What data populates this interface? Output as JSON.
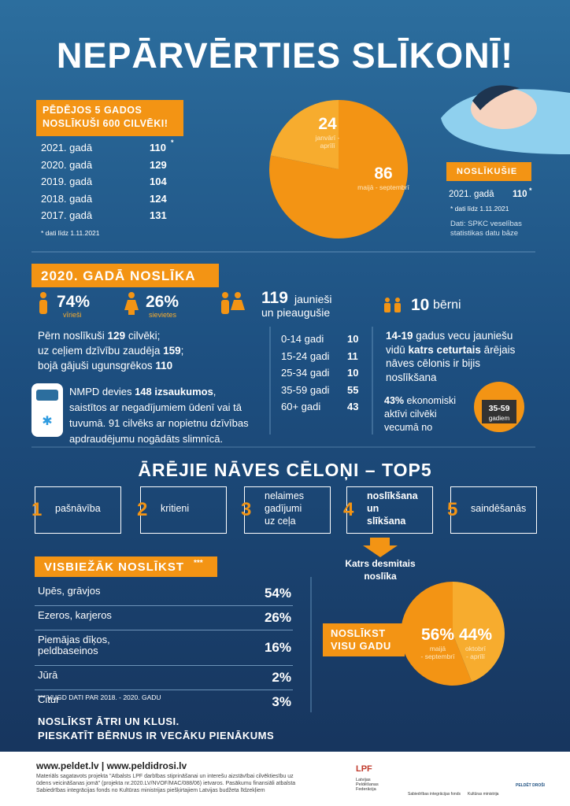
{
  "header": {
    "title": "NEPĀRVĒRTIES SLĪKONĪ!"
  },
  "five_years": {
    "heading": [
      "PĒDĒJOS 5 GADOS",
      "NOSLĪKUŠI 600 CILVĒKI!"
    ],
    "rows": [
      {
        "year": "2021. gadā",
        "count": 110,
        "mark": "*"
      },
      {
        "year": "2020. gadā",
        "count": 129
      },
      {
        "year": "2019. gadā",
        "count": 104
      },
      {
        "year": "2018. gadā",
        "count": 124
      },
      {
        "year": "2017. gadā",
        "count": 131
      }
    ],
    "note": "* dati līdz 1.11.2021"
  },
  "season_pie": {
    "type": "pie",
    "slices": [
      {
        "value": 24,
        "label": [
          "janvārī -",
          "aprīlī"
        ],
        "color": "#f7ac2e"
      },
      {
        "value": 86,
        "label": [
          "maijā - septembrī"
        ],
        "color": "#f39414"
      }
    ]
  },
  "drowned": {
    "heading": "NOSLĪKUŠIE",
    "year": "2021. gadā",
    "count": 110,
    "mark": "*",
    "note": "* dati līdz 1.11.2021",
    "source": [
      "Dati: SPKC veselības",
      "statistikas datu bāze"
    ]
  },
  "year_2020": {
    "heading": "2020. GADĀ NOSLĪKA",
    "men": {
      "share": "74%",
      "label": "vīrieši"
    },
    "women": {
      "share": "26%",
      "label": "sievietes"
    },
    "adults": {
      "count": 119,
      "label": [
        "jaunieši",
        "un pieaugušie"
      ]
    },
    "children": {
      "count": 10,
      "label": "bērni"
    },
    "summary": [
      [
        {
          "t": "Pērn noslīkuši "
        },
        {
          "t": "129",
          "b": true
        },
        {
          "t": " cilvēki;"
        }
      ],
      [
        {
          "t": "uz ceļiem dzīvību zaudēja "
        },
        {
          "t": "159",
          "b": true
        },
        {
          "t": ";"
        }
      ],
      [
        {
          "t": "bojā gājuši ugunsgrēkos "
        },
        {
          "t": "110",
          "b": true
        }
      ]
    ],
    "ambulance": [
      [
        {
          "t": "NMPD devies "
        },
        {
          "t": "148 izsaukumos",
          "b": true
        },
        {
          "t": ","
        }
      ],
      [
        {
          "t": "saistītos ar negadījumiem ūdenī vai tā"
        }
      ],
      [
        {
          "t": "tuvumā. 91 cilvēks ar nopietnu dzīvības"
        }
      ],
      [
        {
          "t": "apdraudējumu nogādāts slimnīcā."
        }
      ]
    ],
    "ages": [
      {
        "group": "0-14 gadi",
        "count": 10
      },
      {
        "group": "15-24 gadi",
        "count": 11
      },
      {
        "group": "25-34 gadi",
        "count": 10
      },
      {
        "group": "35-59 gadi",
        "count": 55
      },
      {
        "group": "60+ gadi",
        "count": 43
      }
    ],
    "youth": [
      [
        {
          "t": "14-19",
          "b": true
        },
        {
          "t": " gadus vecu jauniešu"
        }
      ],
      [
        {
          "t": "vidū "
        },
        {
          "t": "katrs ceturtais",
          "b": true
        },
        {
          "t": " ārējais"
        }
      ],
      [
        {
          "t": "nāves cēlonis ir bijis"
        }
      ],
      [
        {
          "t": "noslīkšana"
        }
      ]
    ],
    "active": [
      [
        {
          "t": "43%",
          "b": true
        },
        {
          "t": " ekonomiski"
        }
      ],
      [
        {
          "t": "aktīvi cilvēki"
        }
      ],
      [
        {
          "t": "vecumā no"
        }
      ]
    ],
    "badge": {
      "range": "35-59",
      "unit": "gadiem"
    }
  },
  "causes": {
    "heading": "ĀRĒJIE NĀVES CĒLOŅI – TOP5",
    "items": [
      {
        "rank": 1,
        "label": [
          "pašnāvība"
        ]
      },
      {
        "rank": 2,
        "label": [
          "kritieni"
        ]
      },
      {
        "rank": 3,
        "label": [
          "nelaimes",
          "gadījumi",
          "uz ceļa"
        ]
      },
      {
        "rank": 4,
        "label": [
          "noslīkšana",
          "un",
          "slīkšana"
        ],
        "bold": true
      },
      {
        "rank": 5,
        "label": [
          "saindēšanās"
        ]
      }
    ],
    "note": [
      "Katrs desmitais",
      "noslīka"
    ]
  },
  "places": {
    "heading": "VISBIEŽĀK NOSLĪKST",
    "mark": "***",
    "rows": [
      {
        "place": [
          "Upēs, grāvjos"
        ],
        "share": "54%"
      },
      {
        "place": [
          "Ezeros, karjeros"
        ],
        "share": "26%"
      },
      {
        "place": [
          "Piemājas dīķos,",
          "peldbaseinos"
        ],
        "share": "16%"
      },
      {
        "place": [
          "Jūrā"
        ],
        "share": "2%"
      },
      {
        "place": [
          "Citur"
        ],
        "share": "3%"
      }
    ],
    "note": "*** VUGD DATI PAR 2018. - 2020. GADU"
  },
  "year_pie": {
    "type": "pie",
    "heading": [
      "NOSLĪKST",
      "VISU GADU"
    ],
    "slices": [
      {
        "value": 56,
        "value_label": "56%",
        "label": [
          "maijā",
          "- septembrī"
        ],
        "color": "#f39414"
      },
      {
        "value": 44,
        "value_label": "44%",
        "label": [
          "oktobrī",
          "- aprīlī"
        ],
        "color": "#f7ac2e"
      }
    ]
  },
  "closing": [
    "NOSLĪKST ĀTRI UN KLUSI.",
    "PIESKATĪT BĒRNUS IR VECĀKU PIENĀKUMS"
  ],
  "footer": {
    "sites": "www.peldet.lv | www.peldidrosi.lv",
    "disclaimer": [
      "Materiāls sagatavots projekta \"Atbalsts LPF darbības stiprināšanai un interešu aizstāvībai cilvēktiesību uz",
      "ūdens veicināšanas jomā\" (projekta nr.2020.LV/NVOF/MAC/088/06) ietvaros. Pasākumu finansiāli atbalsta",
      "Sabiedrības integrācijas fonds no Kultūras ministrijas piešķirtajiem Latvijas budžeta līdzekļiem"
    ],
    "logos": [
      "LPF",
      "Latvijas Peldēšanas Federācija",
      "Sabiedrības integrācijas fonds",
      "Kultūras ministrija",
      "PELDĒT DROŠI"
    ]
  }
}
